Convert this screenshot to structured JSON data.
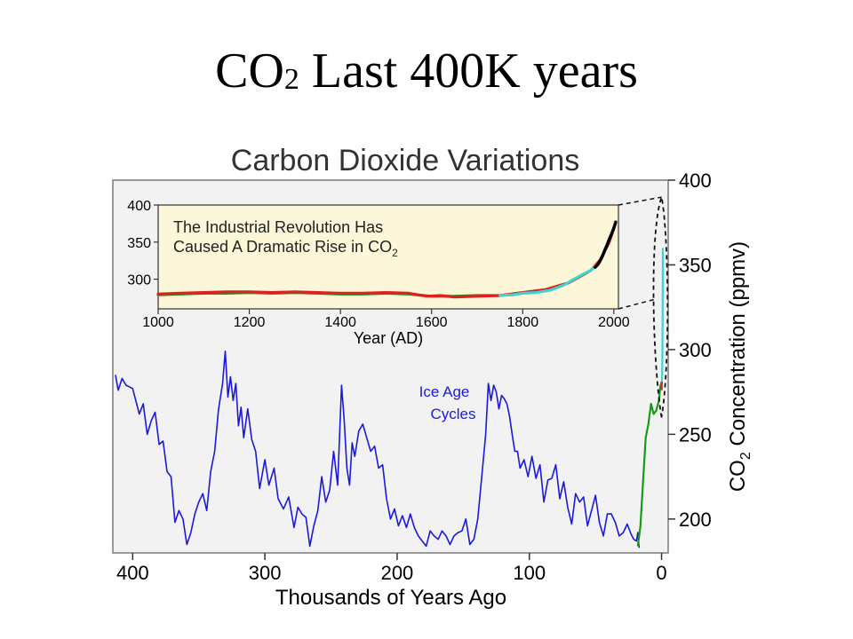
{
  "slide": {
    "title_main": "CO",
    "title_sub": "2",
    "title_rest": " Last 400K years"
  },
  "chart_data": [
    {
      "type": "line",
      "title": "Carbon Dioxide Variations",
      "xlabel": "Thousands of Years Ago",
      "ylabel_prefix": "CO",
      "ylabel_sub": "2",
      "ylabel_rest": " Concentration (ppmv)",
      "xlim": [
        415,
        -5
      ],
      "ylim": [
        180,
        400
      ],
      "x_ticks": [
        400,
        300,
        200,
        100,
        0
      ],
      "y_ticks": [
        200,
        250,
        300,
        350,
        400
      ],
      "annotation": [
        "Ice Age",
        "Cycles"
      ],
      "series": [
        {
          "color": "#1a1adc",
          "x": [
            413,
            411,
            408,
            405,
            400,
            395,
            392,
            389,
            386,
            383,
            380,
            377,
            374,
            371,
            368,
            365,
            362,
            359,
            356,
            353,
            350,
            347,
            344,
            341,
            338,
            335,
            332,
            330,
            328,
            326,
            324,
            322,
            320,
            318,
            316,
            313,
            310,
            307,
            304,
            300,
            297,
            293,
            290,
            286,
            282,
            278,
            275,
            272,
            269,
            266,
            263,
            260,
            257,
            254,
            251,
            248,
            245,
            242,
            240,
            238,
            236,
            234,
            232,
            229,
            226,
            223,
            220,
            217,
            214,
            211,
            208,
            205,
            202,
            199,
            196,
            193,
            190,
            187,
            184,
            181,
            178,
            175,
            172,
            169,
            166,
            163,
            160,
            157,
            154,
            151,
            148,
            145,
            142,
            139,
            136,
            133,
            131,
            129,
            127,
            125,
            123,
            121,
            119,
            117,
            115,
            113,
            111,
            109,
            107,
            104,
            101,
            98,
            95,
            92,
            89,
            86,
            83,
            80,
            77,
            74,
            71,
            68,
            65,
            62,
            59,
            56,
            53,
            50,
            47,
            44,
            41,
            38,
            35,
            32,
            29,
            26,
            23,
            21,
            19,
            18,
            17
          ],
          "y": [
            285,
            276,
            283,
            279,
            277,
            262,
            268,
            250,
            258,
            263,
            244,
            246,
            228,
            225,
            198,
            205,
            200,
            185,
            192,
            203,
            210,
            215,
            205,
            228,
            240,
            265,
            280,
            299,
            272,
            284,
            270,
            280,
            255,
            266,
            248,
            265,
            247,
            240,
            218,
            235,
            220,
            230,
            212,
            206,
            213,
            195,
            207,
            203,
            201,
            184,
            196,
            205,
            225,
            210,
            217,
            240,
            220,
            279,
            258,
            230,
            220,
            245,
            237,
            252,
            256,
            248,
            240,
            243,
            230,
            232,
            212,
            200,
            206,
            196,
            202,
            195,
            203,
            195,
            190,
            187,
            184,
            193,
            190,
            188,
            193,
            190,
            185,
            190,
            192,
            193,
            200,
            185,
            188,
            200,
            225,
            250,
            280,
            270,
            279,
            275,
            265,
            273,
            271,
            268,
            261,
            250,
            240,
            240,
            230,
            235,
            225,
            237,
            224,
            232,
            210,
            223,
            224,
            232,
            212,
            222,
            207,
            197,
            215,
            210,
            213,
            196,
            205,
            214,
            198,
            190,
            203,
            203,
            198,
            190,
            192,
            197,
            191,
            188,
            187,
            192,
            183
          ]
        },
        {
          "color": "#159c15",
          "x": [
            18,
            16,
            14,
            12,
            10,
            8,
            6,
            4,
            2,
            1,
            0
          ],
          "y": [
            184,
            196,
            222,
            248,
            256,
            268,
            262,
            264,
            270,
            278,
            281
          ]
        },
        {
          "color": "#3fd2d2",
          "x": [
            -0.2,
            -0.4,
            -0.6,
            -0.8,
            -1.0
          ],
          "y": [
            280,
            285,
            300,
            330,
            360
          ]
        },
        {
          "color": "#e02020",
          "x": [
            0,
            -0.1,
            -0.2
          ],
          "y": [
            276,
            278,
            281
          ]
        }
      ],
      "zoom_bracket": {
        "from": "0 ka, 280 ppmv",
        "to": "0 ka, 390 ppmv"
      }
    },
    {
      "type": "line",
      "title": "",
      "inset_text_line1": "The Industrial Revolution Has",
      "inset_text_line2_prefix": "Caused A Dramatic Rise in CO",
      "inset_text_line2_sub": "2",
      "xlabel": "Year (AD)",
      "ylabel": "",
      "xlim": [
        1000,
        2010
      ],
      "ylim": [
        260,
        400
      ],
      "x_ticks": [
        1000,
        1200,
        1400,
        1600,
        1800,
        2000
      ],
      "y_ticks": [
        300,
        350,
        400
      ],
      "series": [
        {
          "color": "#159c15",
          "x": [
            1000,
            1050,
            1100,
            1150,
            1200,
            1250,
            1300,
            1350,
            1400,
            1450,
            1500,
            1550,
            1600,
            1650,
            1700,
            1750
          ],
          "y": [
            279,
            280,
            281,
            281,
            282,
            281,
            282,
            281,
            280,
            280,
            281,
            280,
            277,
            277,
            278,
            278
          ]
        },
        {
          "color": "#e02020",
          "x": [
            1000,
            1050,
            1100,
            1150,
            1200,
            1250,
            1300,
            1350,
            1400,
            1450,
            1500,
            1550,
            1590,
            1620,
            1650,
            1700,
            1750,
            1800,
            1850,
            1900,
            1930,
            1950,
            1970,
            1990,
            2000
          ],
          "y": [
            280,
            281,
            282,
            283,
            283,
            282,
            283,
            282,
            281,
            281,
            282,
            281,
            277,
            278,
            276,
            277,
            278,
            282,
            286,
            295,
            305,
            312,
            326,
            350,
            369
          ]
        },
        {
          "color": "#3fd2d2",
          "x": [
            1750,
            1780,
            1800,
            1830,
            1860,
            1890,
            1910,
            1930,
            1950,
            1960
          ],
          "y": [
            278,
            279,
            281,
            282,
            285,
            292,
            299,
            306,
            312,
            318
          ]
        },
        {
          "color": "#000000",
          "x": [
            1959,
            1965,
            1970,
            1975,
            1980,
            1985,
            1990,
            1995,
            2000,
            2004
          ],
          "y": [
            316,
            320,
            325,
            331,
            339,
            346,
            354,
            361,
            369,
            377
          ]
        }
      ]
    }
  ]
}
